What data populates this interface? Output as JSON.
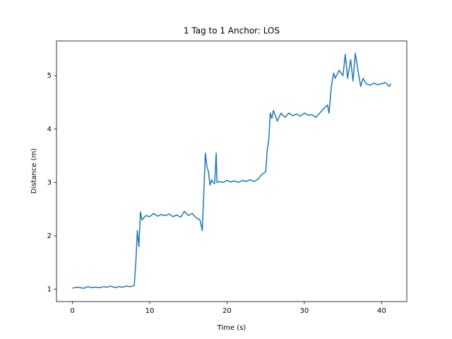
{
  "chart_data": {
    "type": "line",
    "title": "1 Tag to 1 Anchor: LOS",
    "xlabel": "Time (s)",
    "ylabel": "Distance (m)",
    "color": "#1f77b4",
    "x": [
      0,
      0.5,
      1,
      1.5,
      2,
      2.5,
      3,
      3.5,
      4,
      4.5,
      5,
      5.5,
      6,
      6.5,
      7,
      7.5,
      8,
      8.2,
      8.4,
      8.6,
      8.8,
      9,
      9.5,
      10,
      10.5,
      11,
      11.5,
      12,
      12.5,
      13,
      13.5,
      14,
      14.5,
      15,
      15.5,
      16,
      16.5,
      16.8,
      17,
      17.2,
      17.4,
      17.6,
      17.8,
      18,
      18.2,
      18.4,
      18.6,
      18.7,
      19,
      19.5,
      20,
      20.5,
      21,
      21.5,
      22,
      22.5,
      23,
      23.5,
      24,
      24.5,
      25,
      25.2,
      25.4,
      25.6,
      25.8,
      26,
      26.5,
      27,
      27.5,
      28,
      28.5,
      29,
      29.5,
      30,
      30.5,
      31,
      31.5,
      32,
      32.5,
      33,
      33.2,
      33.5,
      33.8,
      34,
      34.5,
      35,
      35.3,
      35.6,
      36,
      36.3,
      36.6,
      37,
      37.3,
      37.6,
      38,
      38.5,
      39,
      39.5,
      40,
      40.5,
      41,
      41.2
    ],
    "values": [
      1.02,
      1.04,
      1.03,
      1.02,
      1.05,
      1.03,
      1.04,
      1.03,
      1.05,
      1.04,
      1.06,
      1.03,
      1.05,
      1.04,
      1.06,
      1.05,
      1.07,
      1.5,
      2.1,
      1.8,
      2.45,
      2.3,
      2.38,
      2.36,
      2.42,
      2.37,
      2.4,
      2.38,
      2.41,
      2.36,
      2.39,
      2.35,
      2.46,
      2.38,
      2.42,
      2.34,
      2.3,
      2.1,
      2.8,
      3.55,
      3.3,
      3.2,
      2.95,
      3.05,
      3.0,
      2.98,
      3.55,
      3.0,
      3.02,
      3.0,
      3.04,
      3.01,
      3.03,
      3.0,
      3.04,
      3.02,
      3.05,
      3.02,
      3.06,
      3.15,
      3.2,
      3.6,
      3.8,
      4.3,
      4.2,
      4.35,
      4.15,
      4.3,
      4.22,
      4.3,
      4.25,
      4.28,
      4.24,
      4.3,
      4.26,
      4.27,
      4.22,
      4.3,
      4.38,
      4.45,
      4.3,
      4.8,
      5.05,
      4.95,
      5.1,
      5.0,
      5.4,
      4.95,
      5.3,
      4.9,
      5.42,
      5.05,
      4.8,
      4.95,
      4.85,
      4.82,
      4.86,
      4.83,
      4.85,
      4.87,
      4.8,
      4.85
    ],
    "xlim": [
      -2.06,
      43.26
    ],
    "ylim": [
      0.77,
      5.65
    ],
    "xticks": [
      0,
      10,
      20,
      30,
      40
    ],
    "yticks": [
      1,
      2,
      3,
      4,
      5
    ]
  }
}
